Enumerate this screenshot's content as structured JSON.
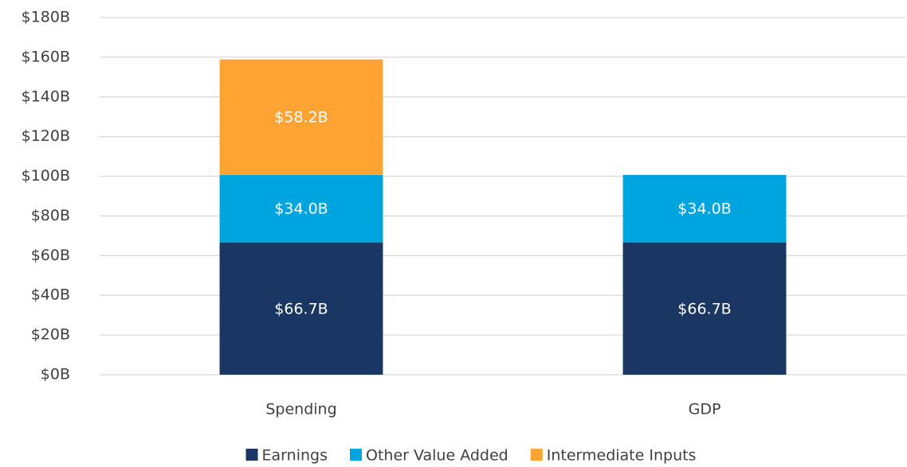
{
  "chart_data": {
    "type": "stacked_bar",
    "categories": [
      "Spending",
      "GDP"
    ],
    "series": [
      {
        "name": "Earnings",
        "color": "#1a3764",
        "values": [
          66.7,
          66.7
        ],
        "value_labels": [
          "$66.7B",
          "$66.7B"
        ]
      },
      {
        "name": "Other Value Added",
        "color": "#00a5e0",
        "values": [
          34.0,
          34.0
        ],
        "value_labels": [
          "$34.0B",
          "$34.0B"
        ]
      },
      {
        "name": "Intermediate Inputs",
        "color": "#ffa433",
        "values": [
          58.2,
          null
        ],
        "value_labels": [
          "$58.2B",
          null
        ]
      }
    ],
    "ylim": [
      0,
      180
    ],
    "yticks": [
      {
        "value": 0,
        "label": "$0B"
      },
      {
        "value": 20,
        "label": "$20B"
      },
      {
        "value": 40,
        "label": "$40B"
      },
      {
        "value": 60,
        "label": "$60B"
      },
      {
        "value": 80,
        "label": "$80B"
      },
      {
        "value": 100,
        "label": "$100B"
      },
      {
        "value": 120,
        "label": "$120B"
      },
      {
        "value": 140,
        "label": "$140B"
      },
      {
        "value": 160,
        "label": "$160B"
      },
      {
        "value": 180,
        "label": "$180B"
      }
    ],
    "grid": true,
    "legend": "bottom"
  }
}
